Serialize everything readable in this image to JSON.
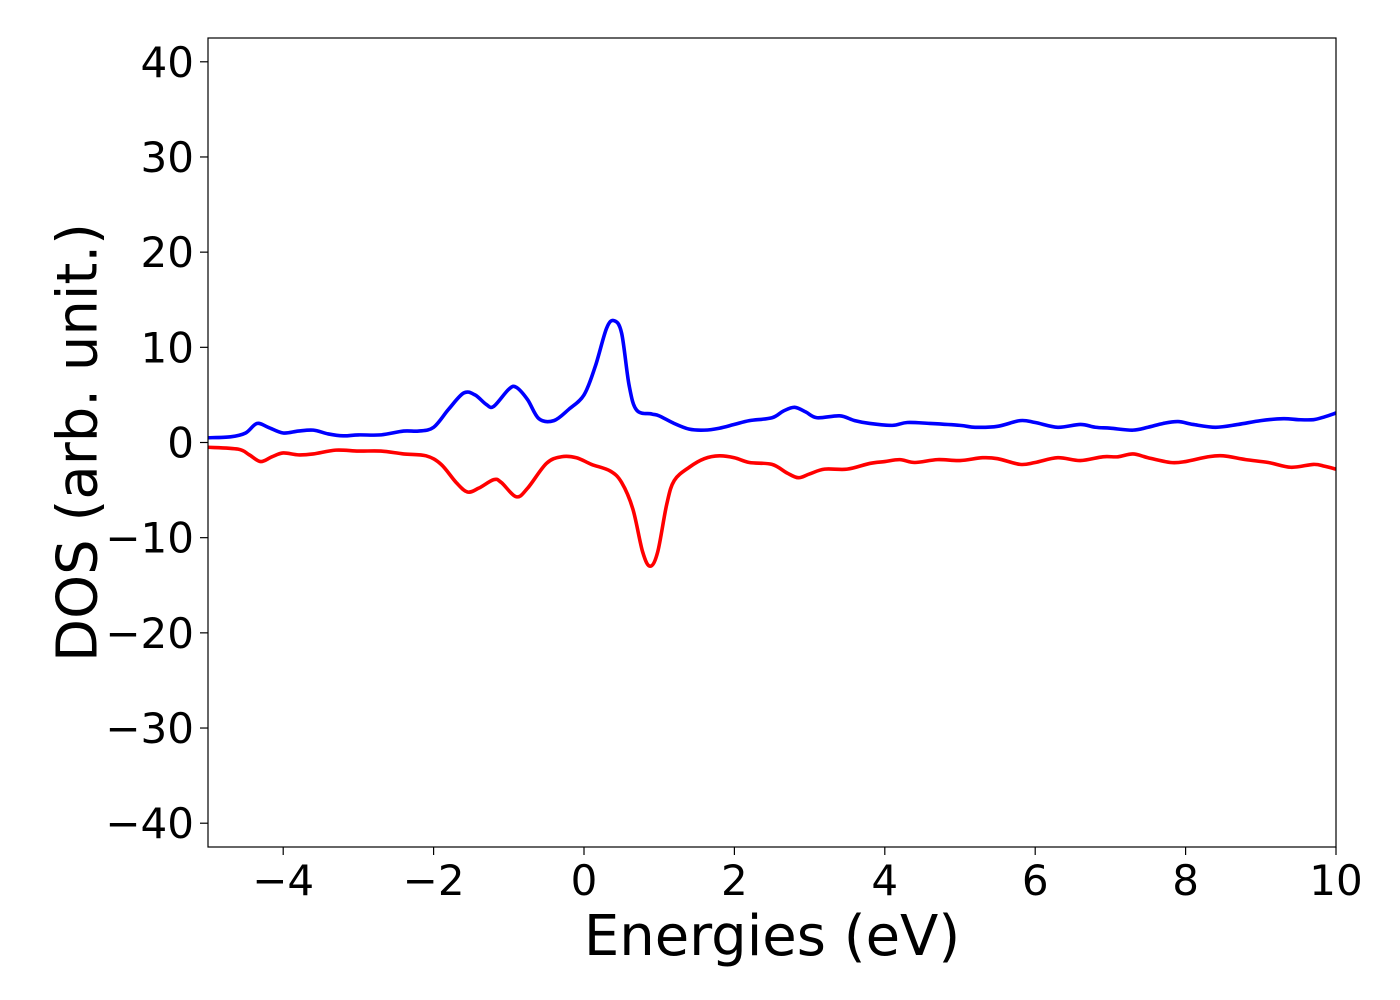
{
  "chart_data": {
    "type": "line",
    "title": "",
    "xlabel": "Energies (eV)",
    "ylabel": "DOS (arb. unit.)",
    "xlim": [
      -5,
      10
    ],
    "ylim": [
      -42.5,
      42.5
    ],
    "xticks": [
      -4,
      -2,
      0,
      2,
      4,
      6,
      8,
      10
    ],
    "xtick_labels": [
      "−4",
      "−2",
      "0",
      "2",
      "4",
      "6",
      "8",
      "10"
    ],
    "yticks": [
      40,
      30,
      20,
      10,
      0,
      -10,
      -20,
      -30,
      -40
    ],
    "ytick_labels": [
      "40",
      "30",
      "20",
      "10",
      "0",
      "−10",
      "−20",
      "−30",
      "−40"
    ],
    "grid": false,
    "legend": "none",
    "series": [
      {
        "color": "#0000ff",
        "points": [
          [
            -5.0,
            0.5
          ],
          [
            -4.7,
            0.6
          ],
          [
            -4.5,
            1.0
          ],
          [
            -4.35,
            2.0
          ],
          [
            -4.2,
            1.6
          ],
          [
            -4.0,
            1.0
          ],
          [
            -3.8,
            1.2
          ],
          [
            -3.6,
            1.3
          ],
          [
            -3.4,
            0.9
          ],
          [
            -3.2,
            0.7
          ],
          [
            -3.0,
            0.8
          ],
          [
            -2.7,
            0.8
          ],
          [
            -2.4,
            1.2
          ],
          [
            -2.2,
            1.2
          ],
          [
            -2.0,
            1.6
          ],
          [
            -1.8,
            3.5
          ],
          [
            -1.6,
            5.2
          ],
          [
            -1.45,
            5.0
          ],
          [
            -1.3,
            4.0
          ],
          [
            -1.2,
            3.8
          ],
          [
            -1.0,
            5.6
          ],
          [
            -0.9,
            5.8
          ],
          [
            -0.75,
            4.5
          ],
          [
            -0.6,
            2.5
          ],
          [
            -0.4,
            2.3
          ],
          [
            -0.2,
            3.5
          ],
          [
            0.0,
            5.0
          ],
          [
            0.15,
            8.0
          ],
          [
            0.3,
            12.0
          ],
          [
            0.4,
            12.8
          ],
          [
            0.5,
            11.5
          ],
          [
            0.6,
            6.0
          ],
          [
            0.7,
            3.4
          ],
          [
            0.9,
            3.0
          ],
          [
            1.0,
            2.8
          ],
          [
            1.2,
            2.0
          ],
          [
            1.4,
            1.4
          ],
          [
            1.6,
            1.3
          ],
          [
            1.8,
            1.5
          ],
          [
            2.0,
            1.9
          ],
          [
            2.2,
            2.3
          ],
          [
            2.5,
            2.6
          ],
          [
            2.65,
            3.3
          ],
          [
            2.8,
            3.7
          ],
          [
            2.95,
            3.2
          ],
          [
            3.1,
            2.6
          ],
          [
            3.4,
            2.8
          ],
          [
            3.6,
            2.3
          ],
          [
            3.8,
            2.0
          ],
          [
            4.1,
            1.8
          ],
          [
            4.3,
            2.1
          ],
          [
            4.6,
            2.0
          ],
          [
            5.0,
            1.8
          ],
          [
            5.2,
            1.6
          ],
          [
            5.5,
            1.7
          ],
          [
            5.8,
            2.3
          ],
          [
            6.0,
            2.1
          ],
          [
            6.3,
            1.6
          ],
          [
            6.6,
            1.9
          ],
          [
            6.8,
            1.6
          ],
          [
            7.0,
            1.5
          ],
          [
            7.3,
            1.3
          ],
          [
            7.5,
            1.6
          ],
          [
            7.7,
            2.0
          ],
          [
            7.9,
            2.2
          ],
          [
            8.1,
            1.9
          ],
          [
            8.4,
            1.6
          ],
          [
            8.7,
            1.9
          ],
          [
            9.0,
            2.3
          ],
          [
            9.3,
            2.5
          ],
          [
            9.5,
            2.4
          ],
          [
            9.7,
            2.4
          ],
          [
            9.85,
            2.7
          ],
          [
            10.0,
            3.1
          ]
        ]
      },
      {
        "color": "#ff0000",
        "points": [
          [
            -5.0,
            -0.5
          ],
          [
            -4.6,
            -0.7
          ],
          [
            -4.45,
            -1.3
          ],
          [
            -4.3,
            -2.0
          ],
          [
            -4.15,
            -1.5
          ],
          [
            -4.0,
            -1.1
          ],
          [
            -3.8,
            -1.3
          ],
          [
            -3.6,
            -1.2
          ],
          [
            -3.3,
            -0.8
          ],
          [
            -3.0,
            -0.9
          ],
          [
            -2.7,
            -0.9
          ],
          [
            -2.4,
            -1.2
          ],
          [
            -2.1,
            -1.4
          ],
          [
            -1.9,
            -2.3
          ],
          [
            -1.7,
            -4.2
          ],
          [
            -1.55,
            -5.2
          ],
          [
            -1.4,
            -4.8
          ],
          [
            -1.2,
            -3.9
          ],
          [
            -1.1,
            -4.2
          ],
          [
            -0.9,
            -5.7
          ],
          [
            -0.75,
            -4.8
          ],
          [
            -0.5,
            -2.2
          ],
          [
            -0.3,
            -1.5
          ],
          [
            -0.1,
            -1.6
          ],
          [
            0.1,
            -2.3
          ],
          [
            0.35,
            -3.0
          ],
          [
            0.5,
            -4.2
          ],
          [
            0.65,
            -7.0
          ],
          [
            0.78,
            -11.5
          ],
          [
            0.88,
            -13.0
          ],
          [
            0.98,
            -11.5
          ],
          [
            1.1,
            -6.5
          ],
          [
            1.2,
            -4.0
          ],
          [
            1.4,
            -2.6
          ],
          [
            1.6,
            -1.7
          ],
          [
            1.8,
            -1.4
          ],
          [
            2.0,
            -1.6
          ],
          [
            2.2,
            -2.1
          ],
          [
            2.5,
            -2.3
          ],
          [
            2.7,
            -3.2
          ],
          [
            2.85,
            -3.7
          ],
          [
            3.0,
            -3.3
          ],
          [
            3.2,
            -2.8
          ],
          [
            3.5,
            -2.8
          ],
          [
            3.8,
            -2.2
          ],
          [
            4.0,
            -2.0
          ],
          [
            4.2,
            -1.8
          ],
          [
            4.4,
            -2.1
          ],
          [
            4.7,
            -1.8
          ],
          [
            5.0,
            -1.9
          ],
          [
            5.3,
            -1.6
          ],
          [
            5.5,
            -1.7
          ],
          [
            5.8,
            -2.3
          ],
          [
            6.0,
            -2.1
          ],
          [
            6.3,
            -1.6
          ],
          [
            6.6,
            -1.9
          ],
          [
            6.9,
            -1.5
          ],
          [
            7.1,
            -1.5
          ],
          [
            7.3,
            -1.2
          ],
          [
            7.5,
            -1.6
          ],
          [
            7.8,
            -2.1
          ],
          [
            8.0,
            -2.0
          ],
          [
            8.3,
            -1.5
          ],
          [
            8.5,
            -1.4
          ],
          [
            8.8,
            -1.8
          ],
          [
            9.1,
            -2.1
          ],
          [
            9.4,
            -2.6
          ],
          [
            9.7,
            -2.3
          ],
          [
            9.85,
            -2.5
          ],
          [
            10.0,
            -2.8
          ]
        ]
      }
    ]
  }
}
